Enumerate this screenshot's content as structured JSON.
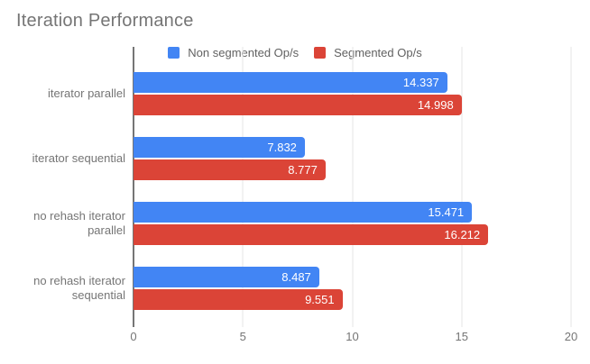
{
  "title": "Iteration Performance",
  "legend": {
    "items": [
      {
        "label": "Non segmented Op/s",
        "color": "#4285f4"
      },
      {
        "label": "Segmented Op/s",
        "color": "#db4437"
      }
    ],
    "position": "top"
  },
  "colors": {
    "series_blue": "#4285f4",
    "series_red": "#db4437",
    "title_text": "#757575",
    "axis_text": "#757575",
    "gridline": "#e6e6e6",
    "axis_line": "#757575",
    "value_label_text": "#ffffff",
    "background": "#ffffff"
  },
  "chart_data": {
    "type": "bar",
    "orientation": "horizontal",
    "title": "Iteration Performance",
    "xlabel": "",
    "ylabel": "",
    "categories": [
      "iterator parallel",
      "iterator sequential",
      "no rehash iterator parallel",
      "no rehash iterator sequential"
    ],
    "series": [
      {
        "name": "Non segmented Op/s",
        "color": "#4285f4",
        "values": [
          14.337,
          7.832,
          15.471,
          8.487
        ]
      },
      {
        "name": "Segmented Op/s",
        "color": "#db4437",
        "values": [
          14.998,
          8.777,
          16.212,
          9.551
        ]
      }
    ],
    "xlim": [
      0,
      20
    ],
    "xticks": [
      0,
      5,
      10,
      15,
      20
    ],
    "grid": true,
    "legend_position": "top",
    "value_labels": true,
    "value_decimals": 3
  }
}
